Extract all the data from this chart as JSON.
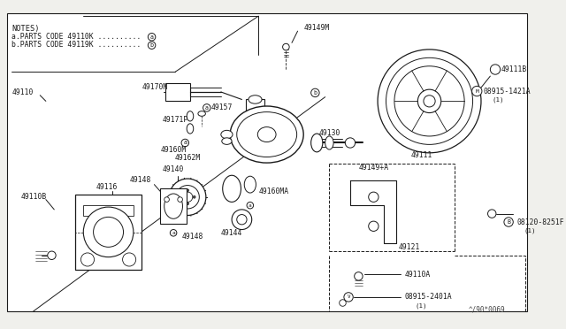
{
  "bg_color": "#f0f0ec",
  "line_color": "#1a1a1a",
  "text_color": "#1a1a1a",
  "fig_width": 6.4,
  "fig_height": 3.72,
  "watermark": "^/90*0069",
  "notes_line1": "NOTES)",
  "notes_line2": "a.PARTS CODE 49110K ..........",
  "notes_line3": "b.PARTS CODE 49119K ..........",
  "fs": 5.8,
  "fs_note": 6.2
}
